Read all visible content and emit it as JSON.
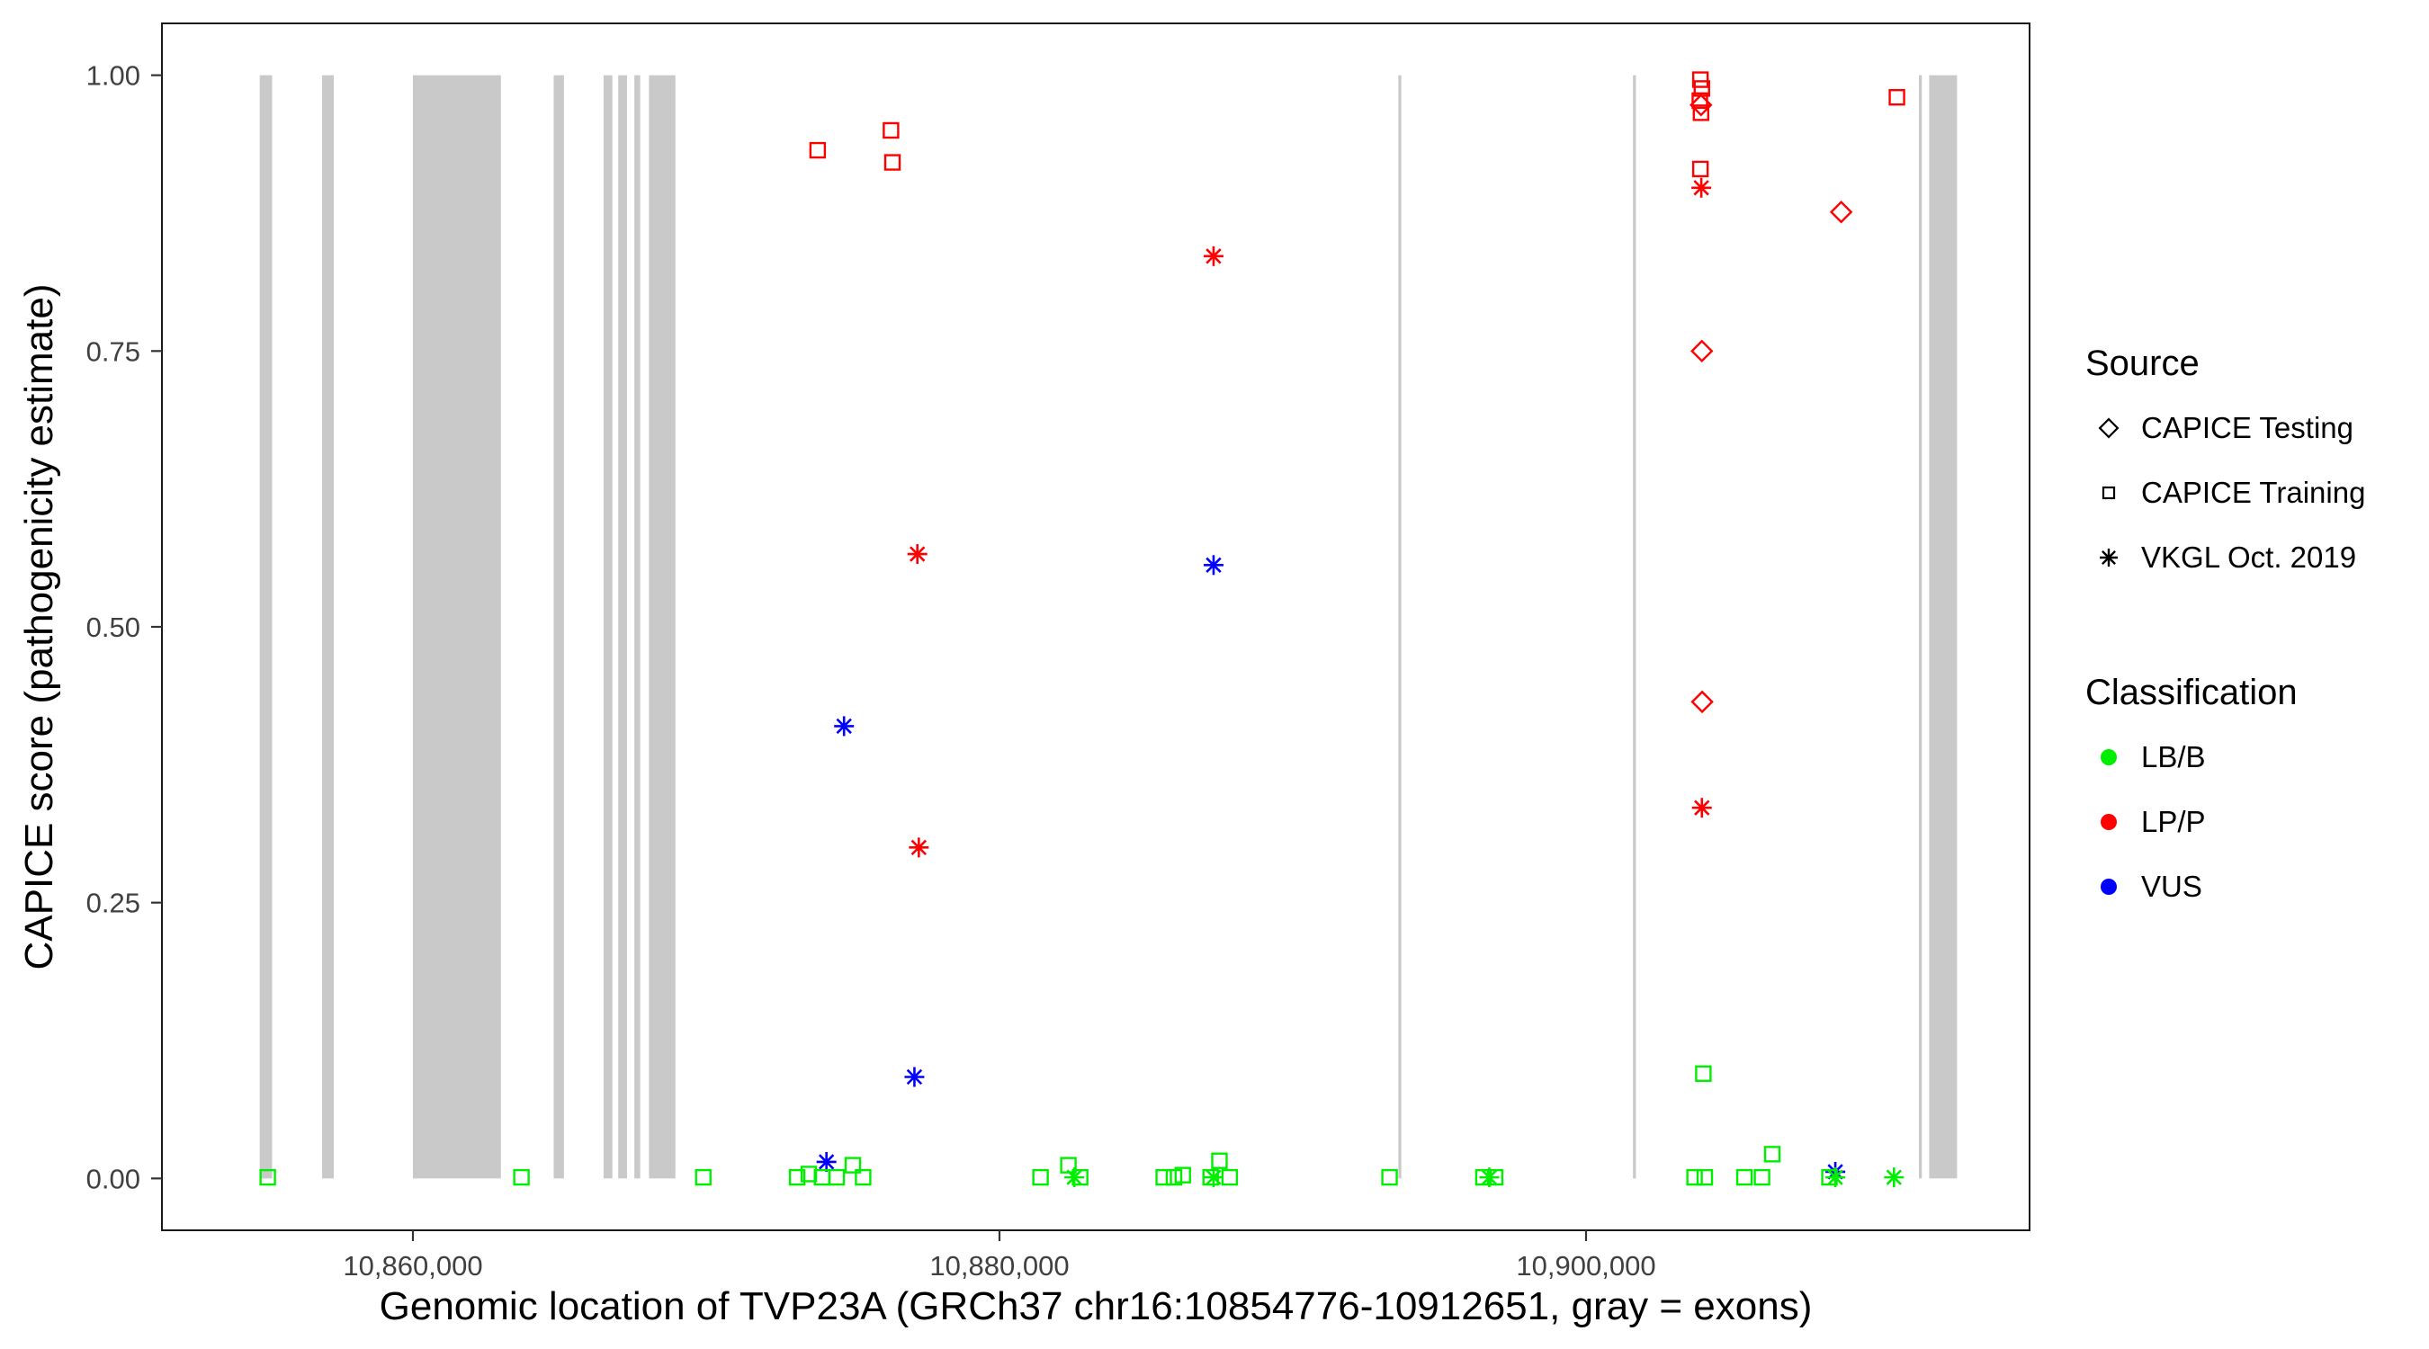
{
  "chart_data": {
    "type": "scatter",
    "title": "",
    "xlabel": "Genomic location of TVP23A (GRCh37 chr16:10854776-10912651, gray = exons)",
    "ylabel": "CAPICE score (pathogenicity estimate)",
    "x_domain": [
      10851442,
      10915123
    ],
    "y_domain": [
      -0.047,
      1.047
    ],
    "x_ticks": [
      {
        "value": 10860000,
        "label": "10,860,000"
      },
      {
        "value": 10880000,
        "label": "10,880,000"
      },
      {
        "value": 10900000,
        "label": "10,900,000"
      }
    ],
    "y_ticks": [
      {
        "value": 0.0,
        "label": "0.00"
      },
      {
        "value": 0.25,
        "label": "0.25"
      },
      {
        "value": 0.5,
        "label": "0.50"
      },
      {
        "value": 0.75,
        "label": "0.75"
      },
      {
        "value": 1.0,
        "label": "1.00"
      }
    ],
    "colors": {
      "LB/B": "#00EE00",
      "LP/P": "#FF0000",
      "VUS": "#0000FF",
      "exon": "#C9C9C9",
      "axis": "#333333",
      "panel_border": "#1a1a1a"
    },
    "exons": [
      [
        10854776,
        10855200
      ],
      [
        10856900,
        10857300
      ],
      [
        10860000,
        10863000
      ],
      [
        10864800,
        10865150
      ],
      [
        10866500,
        10866800
      ],
      [
        10867000,
        10867300
      ],
      [
        10867550,
        10867750
      ],
      [
        10868050,
        10868950
      ],
      [
        10893600,
        10893700
      ],
      [
        10901600,
        10901700
      ],
      [
        10911350,
        10911450
      ],
      [
        10911700,
        10912651
      ]
    ],
    "legend": {
      "source_title": "Source",
      "source_items": [
        {
          "label": "CAPICE Testing",
          "shape": "diamond"
        },
        {
          "label": "CAPICE Training",
          "shape": "square"
        },
        {
          "label": "VKGL Oct. 2019",
          "shape": "asterisk"
        }
      ],
      "classification_title": "Classification",
      "classification_items": [
        {
          "label": "LB/B",
          "color": "#00EE00"
        },
        {
          "label": "LP/P",
          "color": "#FF0000"
        },
        {
          "label": "VUS",
          "color": "#0000FF"
        }
      ]
    },
    "points": [
      {
        "x": 10873800,
        "y": 0.932,
        "cls": "LP/P",
        "src": "CAPICE Training"
      },
      {
        "x": 10876300,
        "y": 0.95,
        "cls": "LP/P",
        "src": "CAPICE Training"
      },
      {
        "x": 10876350,
        "y": 0.921,
        "cls": "LP/P",
        "src": "CAPICE Training"
      },
      {
        "x": 10903900,
        "y": 0.996,
        "cls": "LP/P",
        "src": "CAPICE Training"
      },
      {
        "x": 10903950,
        "y": 0.988,
        "cls": "LP/P",
        "src": "CAPICE Training"
      },
      {
        "x": 10903880,
        "y": 0.977,
        "cls": "LP/P",
        "src": "CAPICE Training"
      },
      {
        "x": 10903920,
        "y": 0.966,
        "cls": "LP/P",
        "src": "CAPICE Training"
      },
      {
        "x": 10903900,
        "y": 0.915,
        "cls": "LP/P",
        "src": "CAPICE Training"
      },
      {
        "x": 10910600,
        "y": 0.98,
        "cls": "LP/P",
        "src": "CAPICE Training"
      },
      {
        "x": 10903920,
        "y": 0.973,
        "cls": "LP/P",
        "src": "CAPICE Testing"
      },
      {
        "x": 10903950,
        "y": 0.75,
        "cls": "LP/P",
        "src": "CAPICE Testing"
      },
      {
        "x": 10903960,
        "y": 0.432,
        "cls": "LP/P",
        "src": "CAPICE Testing"
      },
      {
        "x": 10908700,
        "y": 0.876,
        "cls": "LP/P",
        "src": "CAPICE Testing"
      },
      {
        "x": 10887300,
        "y": 0.836,
        "cls": "LP/P",
        "src": "VKGL Oct. 2019"
      },
      {
        "x": 10877200,
        "y": 0.566,
        "cls": "LP/P",
        "src": "VKGL Oct. 2019"
      },
      {
        "x": 10877250,
        "y": 0.3,
        "cls": "LP/P",
        "src": "VKGL Oct. 2019"
      },
      {
        "x": 10903930,
        "y": 0.898,
        "cls": "LP/P",
        "src": "VKGL Oct. 2019"
      },
      {
        "x": 10903950,
        "y": 0.336,
        "cls": "LP/P",
        "src": "VKGL Oct. 2019"
      },
      {
        "x": 10874700,
        "y": 0.41,
        "cls": "VUS",
        "src": "VKGL Oct. 2019"
      },
      {
        "x": 10887300,
        "y": 0.556,
        "cls": "VUS",
        "src": "VKGL Oct. 2019"
      },
      {
        "x": 10877100,
        "y": 0.092,
        "cls": "VUS",
        "src": "VKGL Oct. 2019"
      },
      {
        "x": 10874100,
        "y": 0.015,
        "cls": "VUS",
        "src": "VKGL Oct. 2019"
      },
      {
        "x": 10908500,
        "y": 0.006,
        "cls": "VUS",
        "src": "VKGL Oct. 2019"
      },
      {
        "x": 10855050,
        "y": 0.001,
        "cls": "LB/B",
        "src": "CAPICE Training"
      },
      {
        "x": 10863700,
        "y": 0.001,
        "cls": "LB/B",
        "src": "CAPICE Training"
      },
      {
        "x": 10869900,
        "y": 0.001,
        "cls": "LB/B",
        "src": "CAPICE Training"
      },
      {
        "x": 10873100,
        "y": 0.001,
        "cls": "LB/B",
        "src": "CAPICE Training"
      },
      {
        "x": 10873500,
        "y": 0.004,
        "cls": "LB/B",
        "src": "CAPICE Training"
      },
      {
        "x": 10873950,
        "y": 0.001,
        "cls": "LB/B",
        "src": "CAPICE Training"
      },
      {
        "x": 10874450,
        "y": 0.001,
        "cls": "LB/B",
        "src": "CAPICE Training"
      },
      {
        "x": 10875000,
        "y": 0.012,
        "cls": "LB/B",
        "src": "CAPICE Training"
      },
      {
        "x": 10875350,
        "y": 0.001,
        "cls": "LB/B",
        "src": "CAPICE Training"
      },
      {
        "x": 10881400,
        "y": 0.001,
        "cls": "LB/B",
        "src": "CAPICE Training"
      },
      {
        "x": 10882350,
        "y": 0.012,
        "cls": "LB/B",
        "src": "CAPICE Training"
      },
      {
        "x": 10882750,
        "y": 0.001,
        "cls": "LB/B",
        "src": "CAPICE Training"
      },
      {
        "x": 10885600,
        "y": 0.001,
        "cls": "LB/B",
        "src": "CAPICE Training"
      },
      {
        "x": 10885950,
        "y": 0.001,
        "cls": "LB/B",
        "src": "CAPICE Training"
      },
      {
        "x": 10886250,
        "y": 0.003,
        "cls": "LB/B",
        "src": "CAPICE Training"
      },
      {
        "x": 10887200,
        "y": 0.001,
        "cls": "LB/B",
        "src": "CAPICE Training"
      },
      {
        "x": 10887500,
        "y": 0.016,
        "cls": "LB/B",
        "src": "CAPICE Training"
      },
      {
        "x": 10887850,
        "y": 0.001,
        "cls": "LB/B",
        "src": "CAPICE Training"
      },
      {
        "x": 10893300,
        "y": 0.001,
        "cls": "LB/B",
        "src": "CAPICE Training"
      },
      {
        "x": 10896500,
        "y": 0.001,
        "cls": "LB/B",
        "src": "CAPICE Training"
      },
      {
        "x": 10896900,
        "y": 0.001,
        "cls": "LB/B",
        "src": "CAPICE Training"
      },
      {
        "x": 10903700,
        "y": 0.001,
        "cls": "LB/B",
        "src": "CAPICE Training"
      },
      {
        "x": 10904050,
        "y": 0.001,
        "cls": "LB/B",
        "src": "CAPICE Training"
      },
      {
        "x": 10904000,
        "y": 0.095,
        "cls": "LB/B",
        "src": "CAPICE Training"
      },
      {
        "x": 10905400,
        "y": 0.001,
        "cls": "LB/B",
        "src": "CAPICE Training"
      },
      {
        "x": 10906000,
        "y": 0.001,
        "cls": "LB/B",
        "src": "CAPICE Training"
      },
      {
        "x": 10906350,
        "y": 0.022,
        "cls": "LB/B",
        "src": "CAPICE Training"
      },
      {
        "x": 10908300,
        "y": 0.001,
        "cls": "LB/B",
        "src": "CAPICE Training"
      },
      {
        "x": 10882550,
        "y": 0.001,
        "cls": "LB/B",
        "src": "VKGL Oct. 2019"
      },
      {
        "x": 10887300,
        "y": 0.001,
        "cls": "LB/B",
        "src": "VKGL Oct. 2019"
      },
      {
        "x": 10896700,
        "y": 0.001,
        "cls": "LB/B",
        "src": "VKGL Oct. 2019"
      },
      {
        "x": 10908500,
        "y": 0.001,
        "cls": "LB/B",
        "src": "VKGL Oct. 2019"
      },
      {
        "x": 10910500,
        "y": 0.001,
        "cls": "LB/B",
        "src": "VKGL Oct. 2019"
      }
    ]
  }
}
